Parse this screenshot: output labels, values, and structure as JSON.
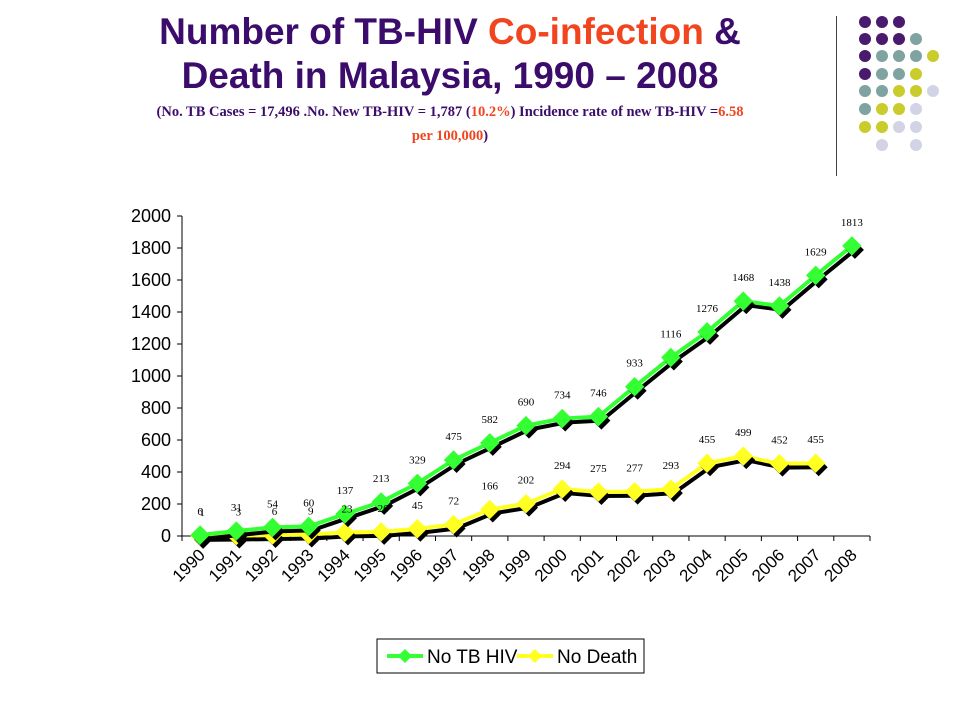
{
  "title": {
    "part1": "Number of TB-HIV ",
    "part2": "Co-infection",
    "part3": " &",
    "line2": "Death in Malaysia, 1990 – 2008"
  },
  "subtitle": {
    "a": "(No. TB Cases  = 17,496 .No. New TB-HIV = 1,787 (",
    "b": "10.2%",
    "c": ") Incidence rate of new TB-HIV =",
    "d": "6.58",
    "e": "per 100,000",
    "f": ")"
  },
  "colors": {
    "title": "#3b0c6b",
    "accent": "#f0451f",
    "series_tbhiv": "#33ff33",
    "series_death": "#ffff22",
    "dot_purple": "#4a1a6e",
    "dot_teal": "#7fa3a0",
    "dot_olive": "#c9cc2a",
    "dot_lavender": "#d3d3e6"
  },
  "chart_data": {
    "type": "line",
    "x": [
      "1990",
      "1991",
      "1992",
      "1993",
      "1994",
      "1995",
      "1996",
      "1997",
      "1998",
      "1999",
      "2000",
      "2001",
      "2002",
      "2003",
      "2004",
      "2005",
      "2006",
      "2007",
      "2008"
    ],
    "series": [
      {
        "name": "No TB HIV",
        "values": [
          6,
          31,
          54,
          60,
          137,
          213,
          329,
          475,
          582,
          690,
          734,
          746,
          933,
          1116,
          1276,
          1468,
          1438,
          1629,
          1813
        ]
      },
      {
        "name": "No Death",
        "values": [
          1,
          3,
          6,
          9,
          23,
          26,
          45,
          72,
          166,
          202,
          294,
          275,
          277,
          293,
          455,
          499,
          452,
          455,
          null
        ]
      }
    ],
    "ylim": [
      0,
      2000
    ],
    "yticks": [
      0,
      200,
      400,
      600,
      800,
      1000,
      1200,
      1400,
      1600,
      1800,
      2000
    ],
    "legend_position": "bottom"
  }
}
